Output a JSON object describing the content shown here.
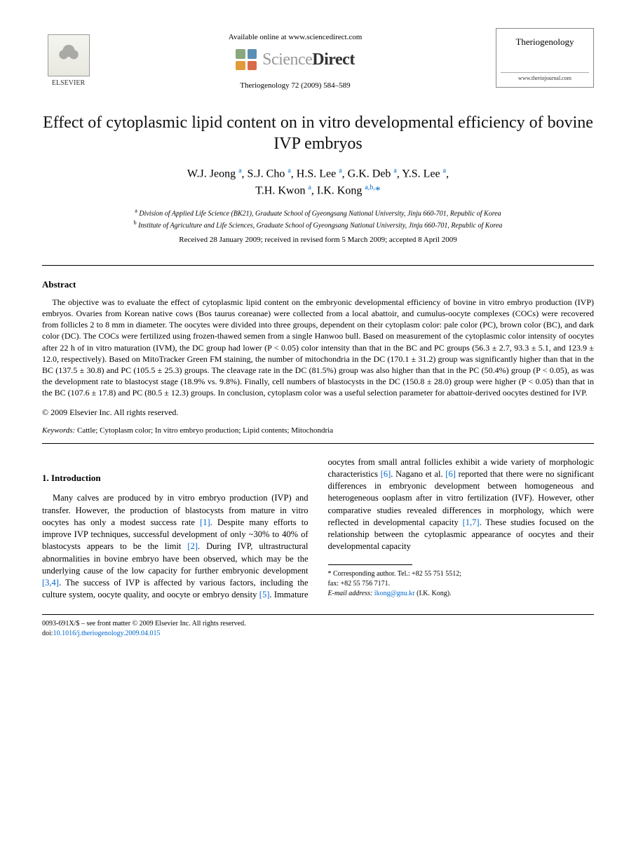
{
  "header": {
    "publisher_name": "ELSEVIER",
    "available_text": "Available online at www.sciencedirect.com",
    "platform_light": "Science",
    "platform_bold": "Direct",
    "citation": "Theriogenology 72 (2009) 584–589",
    "journal_name": "Theriogenology",
    "journal_url": "www.theriojournal.com"
  },
  "title": "Effect of cytoplasmic lipid content on in vitro developmental efficiency of bovine IVP embryos",
  "authors_html": "W.J. Jeong <sup>a</sup>, S.J. Cho <sup>a</sup>, H.S. Lee <sup>a</sup>, G.K. Deb <sup>a</sup>, Y.S. Lee <sup>a</sup>,<br>T.H. Kwon <sup>a</sup>, I.K. Kong <sup>a,b,</sup><span class='corr'>*</span>",
  "affiliations": [
    {
      "sup": "a",
      "text": "Division of Applied Life Science (BK21), Graduate School of Gyeongsang National University, Jinju 660-701, Republic of Korea"
    },
    {
      "sup": "b",
      "text": "Institute of Agriculture and Life Sciences, Graduate School of Gyeongsang National University, Jinju 660-701, Republic of Korea"
    }
  ],
  "dates": "Received 28 January 2009; received in revised form 5 March 2009; accepted 8 April 2009",
  "abstract": {
    "heading": "Abstract",
    "body": "The objective was to evaluate the effect of cytoplasmic lipid content on the embryonic developmental efficiency of bovine in vitro embryo production (IVP) embryos. Ovaries from Korean native cows (Bos taurus coreanae) were collected from a local abattoir, and cumulus-oocyte complexes (COCs) were recovered from follicles 2 to 8 mm in diameter. The oocytes were divided into three groups, dependent on their cytoplasm color: pale color (PC), brown color (BC), and dark color (DC). The COCs were fertilized using frozen-thawed semen from a single Hanwoo bull. Based on measurement of the cytoplasmic color intensity of oocytes after 22 h of in vitro maturation (IVM), the DC group had lower (P < 0.05) color intensity than that in the BC and PC groups (56.3 ± 2.7, 93.3 ± 5.1, and 123.9 ± 12.0, respectively). Based on MitoTracker Green FM staining, the number of mitochondria in the DC (170.1 ± 31.2) group was significantly higher than that in the BC (137.5 ± 30.8) and PC (105.5 ± 25.3) groups. The cleavage rate in the DC (81.5%) group was also higher than that in the PC (50.4%) group (P < 0.05), as was the development rate to blastocyst stage (18.9% vs. 9.8%). Finally, cell numbers of blastocysts in the DC (150.8 ± 28.0) group were higher (P < 0.05) than that in the BC (107.6 ± 17.8) and PC (80.5 ± 12.3) groups. In conclusion, cytoplasm color was a useful selection parameter for abattoir-derived oocytes destined for IVP.",
    "copyright": "© 2009 Elsevier Inc. All rights reserved."
  },
  "keywords": {
    "label": "Keywords:",
    "text": " Cattle; Cytoplasm color; In vitro embryo production; Lipid contents; Mitochondria"
  },
  "section1": {
    "heading": "1. Introduction",
    "para": "Many calves are produced by in vitro embryo production (IVP) and transfer. However, the production of blastocysts from mature in vitro oocytes has only a modest success rate <span class='ref-link'>[1]</span>. Despite many efforts to improve IVP techniques, successful development of only ~30% to 40% of blastocysts appears to be the limit <span class='ref-link'>[2]</span>. During IVP, ultrastructural abnormalities in bovine embryo have been observed, which may be the underlying cause of the low capacity for further embryonic development <span class='ref-link'>[3,4]</span>. The success of IVP is affected by various factors, including the culture system, oocyte quality, and oocyte or embryo density <span class='ref-link'>[5]</span>. Immature oocytes from small antral follicles exhibit a wide variety of morphologic characteristics <span class='ref-link'>[6]</span>. Nagano et al. <span class='ref-link'>[6]</span> reported that there were no significant differences in embryonic development between homogeneous and heterogeneous ooplasm after in vitro fertilization (IVF). However, other comparative studies revealed differences in morphology, which were reflected in developmental capacity <span class='ref-link'>[1,7]</span>. These studies focused on the relationship between the cytoplasmic appearance of oocytes and their developmental capacity"
  },
  "footnotes": {
    "corr_label": "* Corresponding author. Tel.: +82 55 751 5512;",
    "fax": "fax: +82 55 756 7171.",
    "email_label": "E-mail address:",
    "email": "ikong@gnu.kr",
    "email_who": "(I.K. Kong)."
  },
  "footer": {
    "issn": "0093-691X/$ – see front matter © 2009 Elsevier Inc. All rights reserved.",
    "doi_label": "doi:",
    "doi": "10.1016/j.theriogenology.2009.04.015"
  },
  "colors": {
    "link": "#0066cc",
    "text": "#000000",
    "background": "#ffffff"
  }
}
